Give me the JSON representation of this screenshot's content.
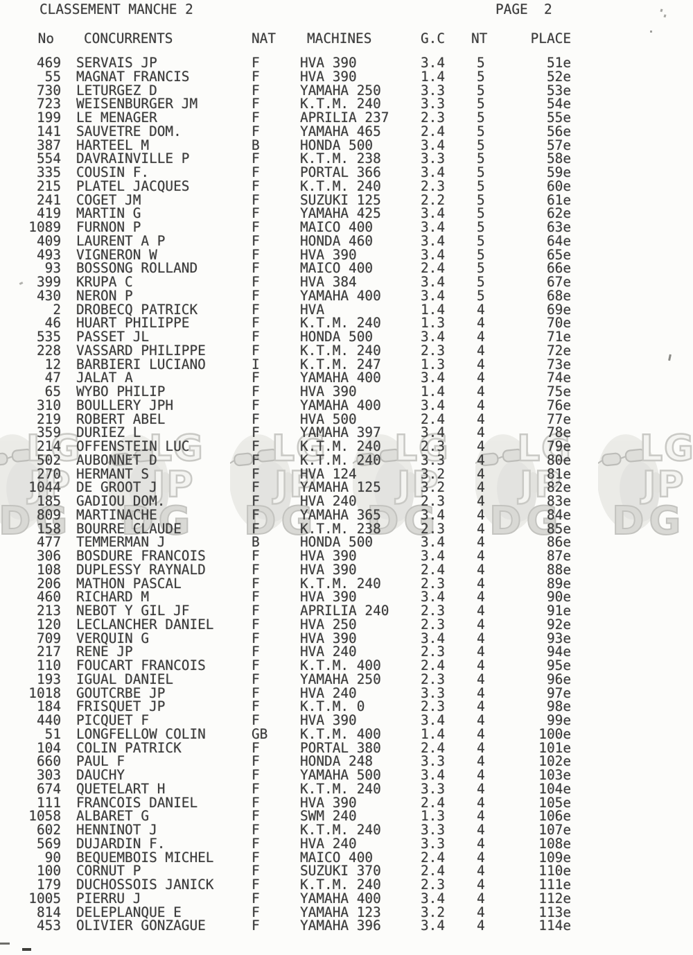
{
  "page": {
    "title": "CLASSEMENT MANCHE 2",
    "page_label": "PAGE  2"
  },
  "table": {
    "columns": {
      "no": "No",
      "concurrents": "CONCURRENTS",
      "nat": "NAT",
      "machines": "MACHINES",
      "gc": "G.C",
      "nt": "NT",
      "place": "PLACE"
    },
    "rows": [
      [
        "469",
        "SERVAIS JP",
        "F",
        "HVA 390",
        "3.4",
        "5",
        "51e"
      ],
      [
        "55",
        "MAGNAT FRANCIS",
        "F",
        "HVA 390",
        "1.4",
        "5",
        "52e"
      ],
      [
        "730",
        "LETURGEZ D",
        "F",
        "YAMAHA 250",
        "3.3",
        "5",
        "53e"
      ],
      [
        "723",
        "WEISENBURGER JM",
        "F",
        "K.T.M. 240",
        "3.3",
        "5",
        "54e"
      ],
      [
        "199",
        "LE MENAGER",
        "F",
        "APRILIA 237",
        "2.3",
        "5",
        "55e"
      ],
      [
        "141",
        "SAUVETRE DOM.",
        "F",
        "YAMAHA 465",
        "2.4",
        "5",
        "56e"
      ],
      [
        "387",
        "HARTEEL M",
        "B",
        "HONDA 500",
        "3.4",
        "5",
        "57e"
      ],
      [
        "554",
        "DAVRAINVILLE P",
        "F",
        "K.T.M. 238",
        "3.3",
        "5",
        "58e"
      ],
      [
        "335",
        "COUSIN F.",
        "F",
        "PORTAL 366",
        "3.4",
        "5",
        "59e"
      ],
      [
        "215",
        "PLATEL JACQUES",
        "F",
        "K.T.M. 240",
        "2.3",
        "5",
        "60e"
      ],
      [
        "241",
        "COGET JM",
        "F",
        "SUZUKI 125",
        "2.2",
        "5",
        "61e"
      ],
      [
        "419",
        "MARTIN G",
        "F",
        "YAMAHA 425",
        "3.4",
        "5",
        "62e"
      ],
      [
        "1089",
        "FURNON P",
        "F",
        "MAICO 400",
        "3.4",
        "5",
        "63e"
      ],
      [
        "409",
        "LAURENT A P",
        "F",
        "HONDA 460",
        "3.4",
        "5",
        "64e"
      ],
      [
        "493",
        "VIGNERON W",
        "F",
        "HVA 390",
        "3.4",
        "5",
        "65e"
      ],
      [
        "93",
        "BOSSONG ROLLAND",
        "F",
        "MAICO 400",
        "2.4",
        "5",
        "66e"
      ],
      [
        "399",
        "KRUPA C",
        "F",
        "HVA 384",
        "3.4",
        "5",
        "67e"
      ],
      [
        "430",
        "NERON P",
        "F",
        "YAMAHA 400",
        "3.4",
        "5",
        "68e"
      ],
      [
        "2",
        "DROBECQ PATRICK",
        "F",
        "HVA",
        "1.4",
        "4",
        "69e"
      ],
      [
        "46",
        "HUART PHILIPPE",
        "F",
        "K.T.M. 240",
        "1.3",
        "4",
        "70e"
      ],
      [
        "535",
        "PASSET JL",
        "F",
        "HONDA 500",
        "3.4",
        "4",
        "71e"
      ],
      [
        "228",
        "VASSARD PHILIPPE",
        "F",
        "K.T.M. 240",
        "2.3",
        "4",
        "72e"
      ],
      [
        "12",
        "BARBIERI LUCIANO",
        "I",
        "K.T.M. 247",
        "1.3",
        "4",
        "73e"
      ],
      [
        "47",
        "JALAT A",
        "F",
        "YAMAHA 400",
        "3.4",
        "4",
        "74e"
      ],
      [
        "65",
        "WYBO PHILIP",
        "F",
        "HVA 390",
        "1.4",
        "4",
        "75e"
      ],
      [
        "310",
        "BOULLERY JPH",
        "F",
        "YAMAHA 400",
        "3.4",
        "4",
        "76e"
      ],
      [
        "219",
        "ROBERT ABEL",
        "F",
        "HVA 500",
        "2.4",
        "4",
        "77e"
      ],
      [
        "359",
        "DURIEZ L",
        "F",
        "YAMAHA 397",
        "3.4",
        "4",
        "78e"
      ],
      [
        "214",
        "OFFENSTEIN LUC",
        "F",
        "K.T.M. 240",
        "2.3",
        "4",
        "79e"
      ],
      [
        "502",
        "AUBONNET D",
        "F",
        "K.T.M. 240",
        "3.3",
        "4",
        "80e"
      ],
      [
        "270",
        "HERMANT S",
        "F",
        "HVA 124",
        "3.2",
        "4",
        "81e"
      ],
      [
        "1044",
        "DE GROOT J",
        "F",
        "YAMAHA 125",
        "3.2",
        "4",
        "82e"
      ],
      [
        "185",
        "GADIOU DOM.",
        "F",
        "HVA 240",
        "2.3",
        "4",
        "83e"
      ],
      [
        "809",
        "MARTINACHE",
        "F",
        "YAMAHA 365",
        "3.4",
        "4",
        "84e"
      ],
      [
        "158",
        "BOURRE CLAUDE",
        "F",
        "K.T.M. 238",
        "2.3",
        "4",
        "85e"
      ],
      [
        "477",
        "TEMMERMAN J",
        "B",
        "HONDA 500",
        "3.4",
        "4",
        "86e"
      ],
      [
        "306",
        "BOSDURE FRANCOIS",
        "F",
        "HVA 390",
        "3.4",
        "4",
        "87e"
      ],
      [
        "108",
        "DUPLESSY RAYNALD",
        "F",
        "HVA 390",
        "2.4",
        "4",
        "88e"
      ],
      [
        "206",
        "MATHON PASCAL",
        "F",
        "K.T.M. 240",
        "2.3",
        "4",
        "89e"
      ],
      [
        "460",
        "RICHARD M",
        "F",
        "HVA 390",
        "3.4",
        "4",
        "90e"
      ],
      [
        "213",
        "NEBOT Y GIL JF",
        "F",
        "APRILIA 240",
        "2.3",
        "4",
        "91e"
      ],
      [
        "120",
        "LECLANCHER DANIEL",
        "F",
        "HVA 250",
        "2.3",
        "4",
        "92e"
      ],
      [
        "709",
        "VERQUIN G",
        "F",
        "HVA 390",
        "3.4",
        "4",
        "93e"
      ],
      [
        "217",
        "RENE JP",
        "F",
        "HVA 240",
        "2.3",
        "4",
        "94e"
      ],
      [
        "110",
        "FOUCART FRANCOIS",
        "F",
        "K.T.M. 400",
        "2.4",
        "4",
        "95e"
      ],
      [
        "193",
        "IGUAL DANIEL",
        "F",
        "YAMAHA 250",
        "2.3",
        "4",
        "96e"
      ],
      [
        "1018",
        "GOUTCRBE JP",
        "F",
        "HVA 240",
        "3.3",
        "4",
        "97e"
      ],
      [
        "184",
        "FRISQUET JP",
        "F",
        "K.T.M. 0",
        "2.3",
        "4",
        "98e"
      ],
      [
        "440",
        "PICQUET F",
        "F",
        "HVA 390",
        "3.4",
        "4",
        "99e"
      ],
      [
        "51",
        "LONGFELLOW COLIN",
        "GB",
        "K.T.M. 400",
        "1.4",
        "4",
        "100e"
      ],
      [
        "104",
        "COLIN PATRICK",
        "F",
        "PORTAL 380",
        "2.4",
        "4",
        "101e"
      ],
      [
        "660",
        "PAUL F",
        "F",
        "HONDA 248",
        "3.3",
        "4",
        "102e"
      ],
      [
        "303",
        "DAUCHY",
        "F",
        "YAMAHA 500",
        "3.4",
        "4",
        "103e"
      ],
      [
        "674",
        "QUETELART H",
        "F",
        "K.T.M. 240",
        "3.3",
        "4",
        "104e"
      ],
      [
        "111",
        "FRANCOIS DANIEL",
        "F",
        "HVA 390",
        "2.4",
        "4",
        "105e"
      ],
      [
        "1058",
        "ALBARET G",
        "F",
        "SWM 240",
        "1.3",
        "4",
        "106e"
      ],
      [
        "602",
        "HENNINOT J",
        "F",
        "K.T.M. 240",
        "3.3",
        "4",
        "107e"
      ],
      [
        "569",
        "DUJARDIN F.",
        "F",
        "HVA 240",
        "3.3",
        "4",
        "108e"
      ],
      [
        "90",
        "BEQUEMBOIS MICHEL",
        "F",
        "MAICO 400",
        "2.4",
        "4",
        "109e"
      ],
      [
        "100",
        "CORNUT P",
        "F",
        "SUZUKI 370",
        "2.4",
        "4",
        "110e"
      ],
      [
        "179",
        "DUCHOSSOIS JANICK",
        "F",
        "K.T.M. 240",
        "2.3",
        "4",
        "111e"
      ],
      [
        "1005",
        "PIERRU J",
        "F",
        "YAMAHA 400",
        "3.4",
        "4",
        "112e"
      ],
      [
        "814",
        "DELEPLANQUE E",
        "F",
        "YAMAHA 123",
        "3.2",
        "4",
        "113e"
      ],
      [
        "453",
        "OLIVIER GONZAGUE",
        "F",
        "YAMAHA 396",
        "3.4",
        "4",
        "114e"
      ]
    ]
  },
  "watermark": {
    "letters": [
      "LG",
      "JP",
      "DG"
    ],
    "repeat": 6,
    "stroke_color": "#c9c9c5",
    "fill_light": "#f4f4f1",
    "fill_dg": "#d9d9d5",
    "face_color": "#e7e7e3"
  }
}
